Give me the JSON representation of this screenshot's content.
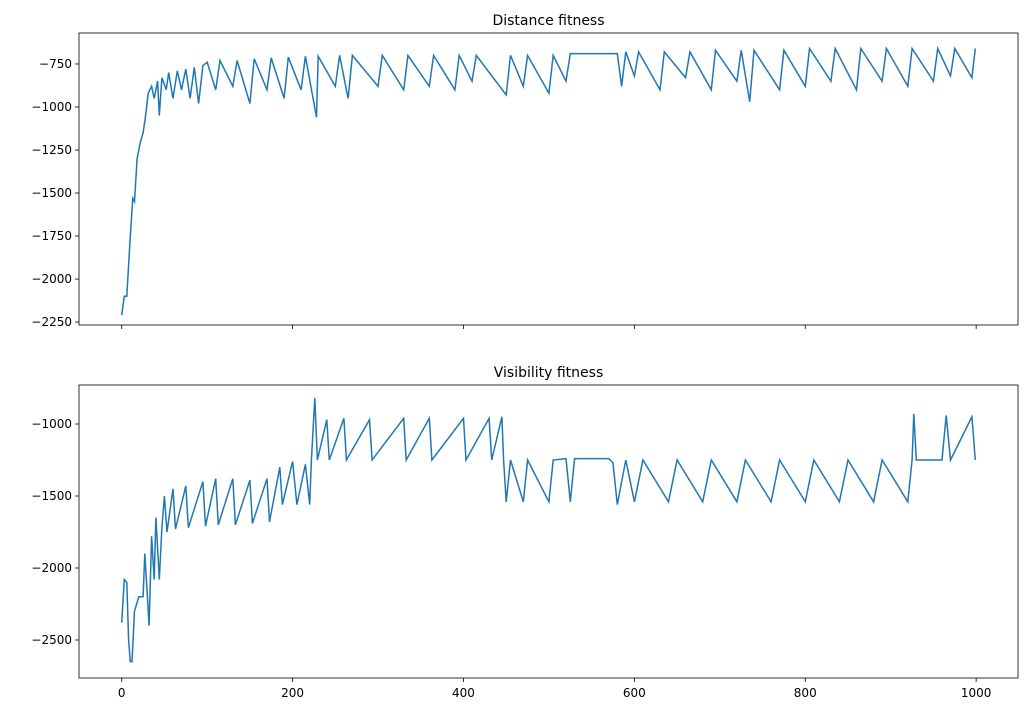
{
  "chart_data": [
    {
      "type": "line",
      "title": "Distance fitness",
      "color": "#1f77b4",
      "xlim": [
        -50,
        1049
      ],
      "xticks": [
        0,
        200,
        400,
        600,
        800,
        1000
      ],
      "show_xtick_labels": false,
      "ylim": [
        -2267,
        -570
      ],
      "yticks": [
        {
          "value": -750,
          "label": "−750"
        },
        {
          "value": -1000,
          "label": "−1000"
        },
        {
          "value": -1250,
          "label": "−1250"
        },
        {
          "value": -1500,
          "label": "−1500"
        },
        {
          "value": -1750,
          "label": "−1750"
        },
        {
          "value": -2000,
          "label": "−2000"
        },
        {
          "value": -2250,
          "label": "−2250"
        }
      ],
      "x": [
        0,
        3,
        6,
        10,
        13,
        15,
        18,
        22,
        25,
        28,
        31,
        35,
        38,
        42,
        44,
        47,
        52,
        55,
        60,
        65,
        70,
        75,
        80,
        85,
        90,
        95,
        100,
        110,
        115,
        130,
        135,
        150,
        155,
        170,
        175,
        190,
        195,
        210,
        215,
        228,
        230,
        250,
        255,
        265,
        270,
        300,
        305,
        330,
        335,
        360,
        365,
        390,
        395,
        410,
        415,
        450,
        455,
        470,
        475,
        500,
        505,
        520,
        525,
        580,
        585,
        590,
        600,
        605,
        630,
        635,
        660,
        665,
        690,
        695,
        720,
        725,
        735,
        740,
        770,
        775,
        800,
        805,
        830,
        835,
        860,
        865,
        890,
        895,
        920,
        925,
        950,
        955,
        970,
        975,
        995,
        999
      ],
      "values": [
        -2210,
        -2100,
        -2100,
        -1750,
        -1530,
        -1550,
        -1300,
        -1200,
        -1150,
        -1050,
        -920,
        -880,
        -950,
        -850,
        -1050,
        -830,
        -900,
        -800,
        -950,
        -790,
        -900,
        -780,
        -950,
        -770,
        -980,
        -760,
        -740,
        -900,
        -730,
        -880,
        -730,
        -980,
        -720,
        -900,
        -715,
        -950,
        -710,
        -900,
        -705,
        -1060,
        -705,
        -880,
        -700,
        -950,
        -700,
        -880,
        -700,
        -900,
        -700,
        -880,
        -700,
        -900,
        -700,
        -850,
        -700,
        -930,
        -700,
        -880,
        -700,
        -920,
        -700,
        -850,
        -690,
        -690,
        -880,
        -680,
        -820,
        -680,
        -900,
        -680,
        -830,
        -680,
        -900,
        -670,
        -850,
        -670,
        -970,
        -670,
        -900,
        -670,
        -880,
        -660,
        -850,
        -660,
        -900,
        -660,
        -850,
        -660,
        -880,
        -660,
        -850,
        -660,
        -820,
        -660,
        -830,
        -660
      ]
    },
    {
      "type": "line",
      "title": "Visibility fitness",
      "color": "#1f77b4",
      "xlim": [
        -50,
        1049
      ],
      "xticks": [
        0,
        200,
        400,
        600,
        800,
        1000
      ],
      "show_xtick_labels": true,
      "ylim": [
        -2764,
        -729
      ],
      "yticks": [
        {
          "value": -1000,
          "label": "−1000"
        },
        {
          "value": -1500,
          "label": "−1500"
        },
        {
          "value": -2000,
          "label": "−2000"
        },
        {
          "value": -2500,
          "label": "−2500"
        }
      ],
      "x": [
        0,
        3,
        6,
        8,
        10,
        12,
        15,
        20,
        25,
        27,
        30,
        32,
        35,
        38,
        40,
        44,
        47,
        50,
        53,
        60,
        63,
        75,
        78,
        95,
        98,
        110,
        113,
        130,
        133,
        150,
        153,
        170,
        173,
        185,
        188,
        200,
        205,
        215,
        220,
        222,
        226,
        229,
        240,
        243,
        260,
        263,
        290,
        293,
        330,
        333,
        360,
        363,
        400,
        403,
        430,
        433,
        445,
        447,
        450,
        455,
        470,
        475,
        500,
        505,
        520,
        525,
        530,
        570,
        575,
        580,
        590,
        600,
        610,
        640,
        650,
        680,
        690,
        720,
        730,
        760,
        770,
        800,
        810,
        840,
        850,
        880,
        890,
        920,
        925,
        927,
        930,
        960,
        965,
        970,
        995,
        999
      ],
      "values": [
        -2380,
        -2080,
        -2100,
        -2500,
        -2650,
        -2650,
        -2300,
        -2200,
        -2200,
        -1900,
        -2200,
        -2400,
        -1780,
        -2080,
        -1650,
        -2080,
        -1720,
        -1500,
        -1750,
        -1450,
        -1730,
        -1430,
        -1720,
        -1400,
        -1710,
        -1380,
        -1700,
        -1380,
        -1700,
        -1390,
        -1690,
        -1380,
        -1680,
        -1300,
        -1560,
        -1260,
        -1560,
        -1280,
        -1560,
        -1250,
        -820,
        -1250,
        -970,
        -1250,
        -960,
        -1250,
        -970,
        -1250,
        -960,
        -1250,
        -960,
        -1250,
        -960,
        -1250,
        -960,
        -1250,
        -950,
        -1250,
        -1540,
        -1250,
        -1540,
        -1250,
        -1540,
        -1250,
        -1240,
        -1540,
        -1240,
        -1240,
        -1270,
        -1560,
        -1250,
        -1540,
        -1250,
        -1540,
        -1250,
        -1540,
        -1250,
        -1540,
        -1250,
        -1540,
        -1250,
        -1540,
        -1250,
        -1540,
        -1250,
        -1540,
        -1250,
        -1540,
        -1250,
        -930,
        -1250,
        -1250,
        -940,
        -1250,
        -950,
        -1250
      ]
    }
  ]
}
